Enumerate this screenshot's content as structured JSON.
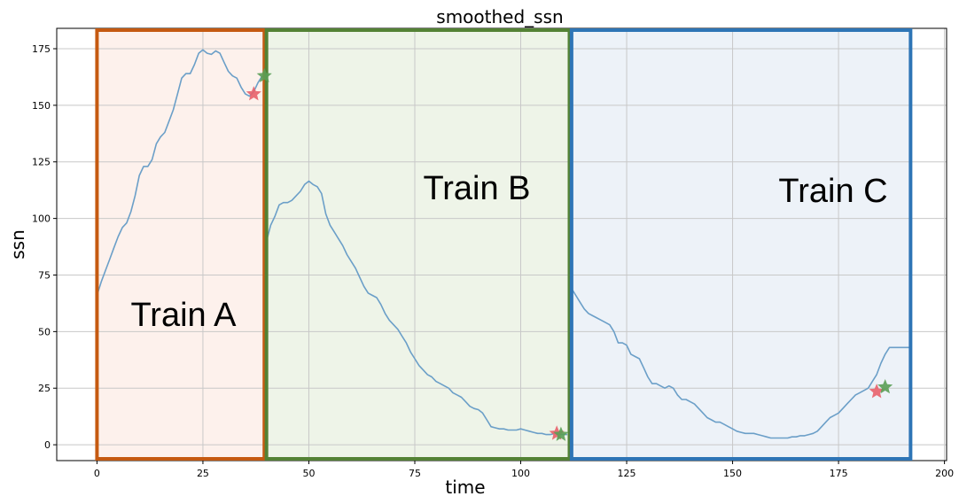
{
  "chart_data": {
    "type": "line",
    "title": "smoothed_ssn",
    "xlabel": "time",
    "ylabel": "ssn",
    "xlim": [
      -9.5,
      200.5
    ],
    "ylim": [
      -7,
      184
    ],
    "xticks": [
      0,
      25,
      50,
      75,
      100,
      125,
      150,
      175,
      200
    ],
    "yticks": [
      0,
      25,
      50,
      75,
      100,
      125,
      150,
      175
    ],
    "grid": true,
    "line_color": "#6b9fc8",
    "series": [
      {
        "segment": "A",
        "x": [
          0,
          1,
          2,
          3,
          4,
          5,
          6,
          7,
          8,
          9,
          10,
          11,
          12,
          13,
          14,
          15,
          16,
          17,
          18,
          19,
          20,
          21,
          22,
          23,
          24,
          25,
          26,
          27,
          28,
          29,
          30,
          31,
          32,
          33,
          34,
          35,
          36,
          37,
          38,
          39
        ],
        "values": [
          66,
          72,
          77,
          82,
          87,
          92,
          96,
          98,
          103,
          110,
          119,
          123,
          123,
          126,
          133,
          136,
          138,
          143,
          148,
          155,
          162,
          164,
          164,
          168,
          173,
          174.5,
          173,
          172.5,
          174,
          173,
          169,
          165,
          163,
          162,
          158,
          155,
          154,
          156,
          160,
          163
        ]
      },
      {
        "segment": "B",
        "x": [
          40,
          41,
          42,
          43,
          44,
          45,
          46,
          47,
          48,
          49,
          50,
          51,
          52,
          53,
          54,
          55,
          56,
          57,
          58,
          59,
          60,
          61,
          62,
          63,
          64,
          65,
          66,
          67,
          68,
          69,
          70,
          71,
          72,
          73,
          74,
          75,
          76,
          77,
          78,
          79,
          80,
          81,
          82,
          83,
          84,
          85,
          86,
          87,
          88,
          89,
          90,
          91,
          92,
          93,
          94,
          95,
          96,
          97,
          98,
          99,
          100,
          101,
          102,
          103,
          104,
          105,
          106,
          107,
          108,
          109,
          110,
          111
        ],
        "values": [
          90,
          97,
          101,
          106,
          107,
          107,
          108,
          110,
          112,
          115,
          116.5,
          115,
          114,
          111,
          102,
          97,
          94,
          91,
          88,
          84,
          81,
          78,
          74,
          70,
          67,
          66,
          65,
          62,
          58,
          55,
          53,
          51,
          48,
          45,
          41,
          38,
          35,
          33,
          31,
          30,
          28,
          27,
          26,
          25,
          23,
          22,
          21,
          19,
          17,
          16,
          15.5,
          14,
          11,
          8,
          7.5,
          7,
          7,
          6.5,
          6.5,
          6.5,
          7,
          6.5,
          6,
          5.5,
          5,
          5,
          4.5,
          4.5,
          5,
          4.5,
          4.5,
          4.5
        ]
      },
      {
        "segment": "C",
        "x": [
          112,
          113,
          114,
          115,
          116,
          117,
          118,
          119,
          120,
          121,
          122,
          123,
          124,
          125,
          126,
          127,
          128,
          129,
          130,
          131,
          132,
          133,
          134,
          135,
          136,
          137,
          138,
          139,
          140,
          141,
          142,
          143,
          144,
          145,
          146,
          147,
          148,
          149,
          150,
          151,
          152,
          153,
          154,
          155,
          156,
          157,
          158,
          159,
          160,
          161,
          162,
          163,
          164,
          165,
          166,
          167,
          168,
          169,
          170,
          171,
          172,
          173,
          174,
          175,
          176,
          177,
          178,
          179,
          180,
          181,
          182,
          183,
          184,
          185,
          186,
          187,
          188,
          189,
          190,
          191,
          192
        ],
        "values": [
          69,
          66,
          63,
          60,
          58,
          57,
          56,
          55,
          54,
          53,
          50,
          45,
          45,
          44,
          40,
          39,
          38,
          34,
          30,
          27,
          27,
          26,
          25,
          26,
          25,
          22,
          20,
          20,
          19,
          18,
          16,
          14,
          12,
          11,
          10,
          10,
          9,
          8,
          7,
          6,
          5.5,
          5,
          5,
          5,
          4.5,
          4,
          3.5,
          3,
          3,
          3,
          3,
          3,
          3.5,
          3.5,
          4,
          4,
          4.5,
          5,
          6,
          8,
          10,
          12,
          13,
          14,
          16,
          18,
          20,
          22,
          23,
          24,
          25,
          28,
          31,
          36,
          40,
          43,
          43,
          43,
          43,
          43,
          43
        ]
      }
    ],
    "regions": [
      {
        "label": "Train A",
        "x_start": 0,
        "x_end": 39.5,
        "border": "#c55a11",
        "fill": "#fdf1ec"
      },
      {
        "label": "Train B",
        "x_start": 40,
        "x_end": 111.5,
        "border": "#548235",
        "fill": "#eef4e8"
      },
      {
        "label": "Train C",
        "x_start": 112,
        "x_end": 192,
        "border": "#2e75b6",
        "fill": "#edf2f8"
      }
    ],
    "markers": [
      {
        "x": 37,
        "y": 155,
        "color": "#e8606a"
      },
      {
        "x": 39.5,
        "y": 163,
        "color": "#5a9e55"
      },
      {
        "x": 108.5,
        "y": 5,
        "color": "#e8606a"
      },
      {
        "x": 109.5,
        "y": 4.5,
        "color": "#5a9e55"
      },
      {
        "x": 184,
        "y": 23.5,
        "color": "#e8606a"
      },
      {
        "x": 186,
        "y": 25.5,
        "color": "#5a9e55"
      }
    ]
  }
}
